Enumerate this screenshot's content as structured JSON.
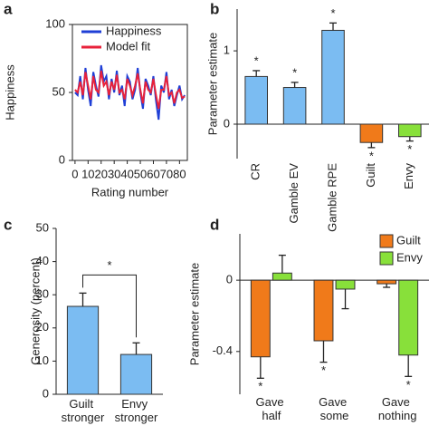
{
  "chart_data": [
    {
      "type": "line",
      "panel_label": "a",
      "ylabel": "Happiness",
      "xlabel": "Rating number",
      "x": [
        0,
        2,
        4,
        6,
        8,
        10,
        12,
        14,
        16,
        18,
        20,
        22,
        24,
        26,
        28,
        30,
        32,
        34,
        36,
        38,
        40,
        42,
        44,
        46,
        48,
        50,
        52,
        54,
        56,
        58,
        60,
        62,
        64,
        66,
        68,
        70,
        72,
        74,
        76,
        78,
        80,
        82,
        84
      ],
      "series": [
        {
          "name": "Happiness",
          "color": "#1f3fd6",
          "values": [
            50,
            48,
            62,
            45,
            68,
            52,
            40,
            65,
            55,
            47,
            70,
            58,
            62,
            45,
            60,
            50,
            66,
            48,
            55,
            40,
            62,
            58,
            45,
            52,
            68,
            50,
            38,
            60,
            55,
            48,
            62,
            44,
            30,
            55,
            50,
            65,
            45,
            52,
            40,
            48,
            55,
            45,
            48
          ]
        },
        {
          "name": "Model fit",
          "color": "#e8213a",
          "values": [
            52,
            50,
            58,
            48,
            65,
            55,
            45,
            62,
            52,
            50,
            66,
            55,
            58,
            48,
            58,
            52,
            63,
            50,
            52,
            45,
            60,
            55,
            48,
            55,
            64,
            52,
            42,
            58,
            52,
            50,
            60,
            48,
            38,
            52,
            52,
            62,
            48,
            50,
            42,
            50,
            52,
            46,
            47
          ]
        }
      ],
      "xlim": [
        -2,
        86
      ],
      "xticks": [
        0,
        10,
        20,
        30,
        40,
        50,
        60,
        70,
        80
      ],
      "ylim": [
        0,
        100
      ],
      "yticks": [
        0,
        50,
        100
      ]
    },
    {
      "type": "bar",
      "panel_label": "b",
      "ylabel": "Parameter estimate",
      "categories": [
        "CR",
        "Gamble EV",
        "Gamble RPE",
        "Guilt",
        "Envy"
      ],
      "values": [
        0.65,
        0.5,
        1.28,
        -0.25,
        -0.17
      ],
      "errors": [
        0.08,
        0.07,
        0.1,
        0.07,
        0.06
      ],
      "colors": [
        "#7bbcf2",
        "#7bbcf2",
        "#7bbcf2",
        "#f07a1a",
        "#88e03a"
      ],
      "significance": [
        "*",
        "*",
        "*",
        "*",
        "*"
      ],
      "ylim": [
        -0.47,
        1.57
      ],
      "yticks": [
        0,
        1
      ]
    },
    {
      "type": "bar",
      "panel_label": "c",
      "ylabel": "Generosity (percent)",
      "categories": [
        "Guilt stronger",
        "Envy stronger"
      ],
      "values": [
        26.5,
        12
      ],
      "errors": [
        4,
        3.5
      ],
      "colors": [
        "#7bbcf2",
        "#7bbcf2"
      ],
      "bracket_label": "*",
      "ylim": [
        0,
        50
      ],
      "yticks": [
        0,
        10,
        20,
        30,
        40,
        50
      ]
    },
    {
      "type": "bar",
      "panel_label": "d",
      "ylabel": "Parameter estimate",
      "categories": [
        "Gave half",
        "Gave some",
        "Gave nothing"
      ],
      "series": [
        {
          "name": "Guilt",
          "color": "#f07a1a",
          "values": [
            -0.43,
            -0.34,
            -0.02
          ],
          "errors": [
            0.12,
            0.12,
            0.02
          ],
          "significance": [
            "*",
            "*",
            null
          ]
        },
        {
          "name": "Envy",
          "color": "#88e03a",
          "values": [
            0.04,
            -0.05,
            -0.42
          ],
          "errors": [
            0.1,
            0.11,
            0.12
          ],
          "significance": [
            null,
            null,
            "*"
          ]
        }
      ],
      "ylim": [
        -0.64,
        0.26
      ],
      "yticks": [
        -0.4,
        0
      ]
    }
  ]
}
